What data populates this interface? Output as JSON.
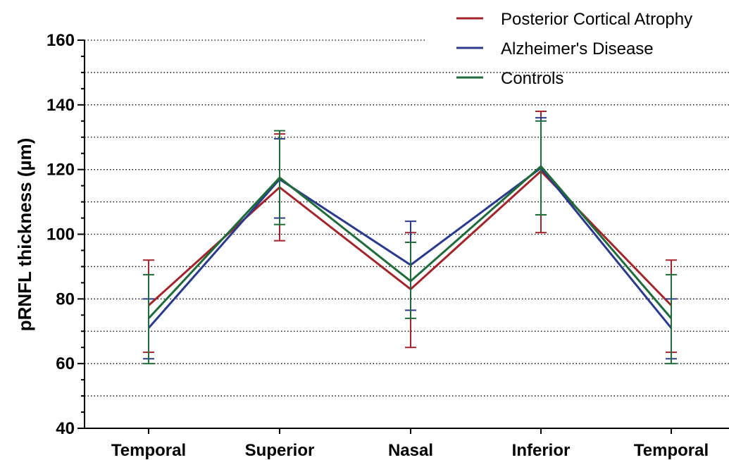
{
  "chart_data": {
    "type": "line",
    "categories": [
      "Temporal",
      "Superior",
      "Nasal",
      "Inferior",
      "Temporal"
    ],
    "ylabel": "pRNFL thickness (µm)",
    "ylim": [
      40,
      160
    ],
    "yticks": [
      40,
      60,
      80,
      100,
      120,
      140,
      160
    ],
    "gridlines": [
      50,
      60,
      70,
      80,
      90,
      100,
      110,
      120,
      130,
      140,
      150,
      160
    ],
    "grid": "dotted-horizontal",
    "legend_position": "top-right",
    "series": [
      {
        "name": "Posterior Cortical Atrophy",
        "color": "#a3242b",
        "values": [
          78,
          114.5,
          83,
          119.5,
          78
        ],
        "err_low": [
          63.5,
          98,
          65,
          100.5,
          63.5
        ],
        "err_high": [
          92,
          131,
          100.5,
          138,
          92
        ]
      },
      {
        "name": "Alzheimer's Disease",
        "color": "#2b3a8c",
        "values": [
          71,
          117,
          90.5,
          120.5,
          71
        ],
        "err_low": [
          61.5,
          105,
          76.5,
          106,
          61.5
        ],
        "err_high": [
          80,
          129.5,
          104,
          136,
          80
        ]
      },
      {
        "name": "Controls",
        "color": "#1f6b3a",
        "values": [
          74,
          117.5,
          85.5,
          121,
          74
        ],
        "err_low": [
          60,
          103,
          74,
          106,
          60
        ],
        "err_high": [
          87.5,
          132,
          97.5,
          135,
          87.5
        ]
      }
    ]
  }
}
